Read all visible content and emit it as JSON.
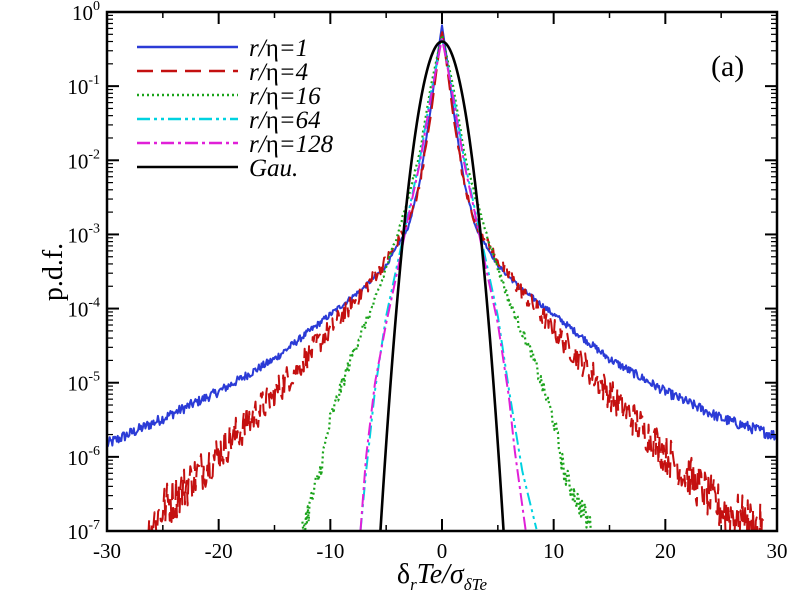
{
  "chart_data": {
    "type": "line",
    "panel_label": "(a)",
    "ylabel": "p.d.f.",
    "xlabel": {
      "main": "δ",
      "sub1": "r",
      "mid": "Te/σ",
      "sub2": "δTe"
    },
    "xlim": [
      -30,
      30
    ],
    "ylim_log10": [
      -7,
      0
    ],
    "x_ticks": [
      -30,
      -20,
      -10,
      0,
      10,
      20,
      30
    ],
    "x_tick_labels": [
      "-30",
      "-20",
      "-10",
      "0",
      "10",
      "20",
      "30"
    ],
    "y_tick_exponents": [
      "0",
      "-1",
      "-2",
      "-3",
      "-4",
      "-5",
      "-6",
      "-7"
    ],
    "y_tick_base": "10",
    "series": [
      {
        "name": "r/η=1",
        "label_main": "r/",
        "label_eta": "η",
        "label_rest": "=1",
        "color": "#2b3bd6",
        "dash": "",
        "noise": 0.018,
        "x": [
          -30,
          -25,
          -20,
          -15,
          -10,
          -7,
          -5,
          -3,
          -2,
          -1,
          -0.5,
          0,
          0.5,
          1,
          2,
          3,
          5,
          7,
          10,
          15,
          20,
          25,
          30
        ],
        "log10pdf": [
          -5.83,
          -5.48,
          -5.12,
          -4.68,
          -4.08,
          -3.72,
          -3.42,
          -2.9,
          -2.3,
          -1.3,
          -0.7,
          -0.18,
          -0.7,
          -1.3,
          -2.3,
          -2.9,
          -3.42,
          -3.72,
          -4.08,
          -4.68,
          -5.12,
          -5.48,
          -5.72
        ]
      },
      {
        "name": "r/η=4",
        "label_main": "r/",
        "label_eta": "η",
        "label_rest": "=4",
        "color": "#c41010",
        "dash": "16 8",
        "noise": 0.06,
        "x": [
          -26.3,
          -25,
          -22,
          -20,
          -15,
          -10,
          -7,
          -5,
          -3,
          -2,
          -1,
          -0.5,
          0,
          0.5,
          1,
          2,
          3,
          5,
          7,
          10,
          15,
          20,
          22,
          25,
          28.8
        ],
        "log10pdf": [
          -7.0,
          -6.7,
          -6.25,
          -5.95,
          -5.15,
          -4.28,
          -3.75,
          -3.35,
          -2.85,
          -2.35,
          -1.4,
          -0.8,
          -0.25,
          -0.8,
          -1.4,
          -2.35,
          -2.85,
          -3.35,
          -3.75,
          -4.28,
          -5.15,
          -5.95,
          -6.25,
          -6.7,
          -7.0
        ]
      },
      {
        "name": "r/η=16",
        "label_main": "r/",
        "label_eta": "η",
        "label_rest": "=16",
        "color": "#1aa31a",
        "dash": "2 3",
        "noise": 0.03,
        "x": [
          -12.5,
          -11,
          -10,
          -8,
          -6,
          -4,
          -3,
          -2,
          -1,
          0,
          1,
          2,
          3,
          4,
          6,
          8,
          10,
          11,
          13.5
        ],
        "log10pdf": [
          -7.0,
          -6.25,
          -5.5,
          -4.6,
          -3.9,
          -3.0,
          -2.5,
          -1.9,
          -1.0,
          -0.3,
          -1.0,
          -1.9,
          -2.5,
          -3.0,
          -3.9,
          -4.6,
          -5.5,
          -6.25,
          -7.0
        ],
        "width": 2.2
      },
      {
        "name": "r/η=64",
        "label_main": "r/",
        "label_eta": "η",
        "label_rest": "=64",
        "color": "#00d2e0",
        "dash": "13 4 3 4 3 4",
        "noise": 0.0,
        "x": [
          -7.3,
          -6.8,
          -6,
          -5,
          -4,
          -3,
          -2,
          -1,
          0,
          1,
          2,
          3,
          4,
          5,
          6,
          7.2,
          8.5
        ],
        "log10pdf": [
          -7.0,
          -6.2,
          -5.1,
          -4.1,
          -3.4,
          -2.7,
          -2.0,
          -1.1,
          -0.35,
          -1.1,
          -2.0,
          -2.7,
          -3.4,
          -4.1,
          -5.1,
          -6.2,
          -7.0
        ]
      },
      {
        "name": "r/η=128",
        "label_main": "r/",
        "label_eta": "η",
        "label_rest": "=128",
        "color": "#e020d8",
        "dash": "13 4 3 4",
        "noise": 0.0,
        "x": [
          -7.3,
          -6.8,
          -6,
          -5,
          -4,
          -3,
          -2,
          -1,
          0,
          1,
          2,
          3,
          4,
          5,
          6,
          6.5,
          7.5
        ],
        "log10pdf": [
          -7.0,
          -6.0,
          -5.0,
          -4.2,
          -3.5,
          -2.75,
          -2.05,
          -1.15,
          -0.35,
          -1.15,
          -2.05,
          -2.75,
          -3.5,
          -4.2,
          -5.2,
          -5.9,
          -7.0
        ]
      },
      {
        "name": "Gau.",
        "label_main": "Gau.",
        "label_eta": "",
        "label_rest": "",
        "color": "#000000",
        "dash": "",
        "gaussian": true,
        "noise": 0.0
      }
    ]
  }
}
